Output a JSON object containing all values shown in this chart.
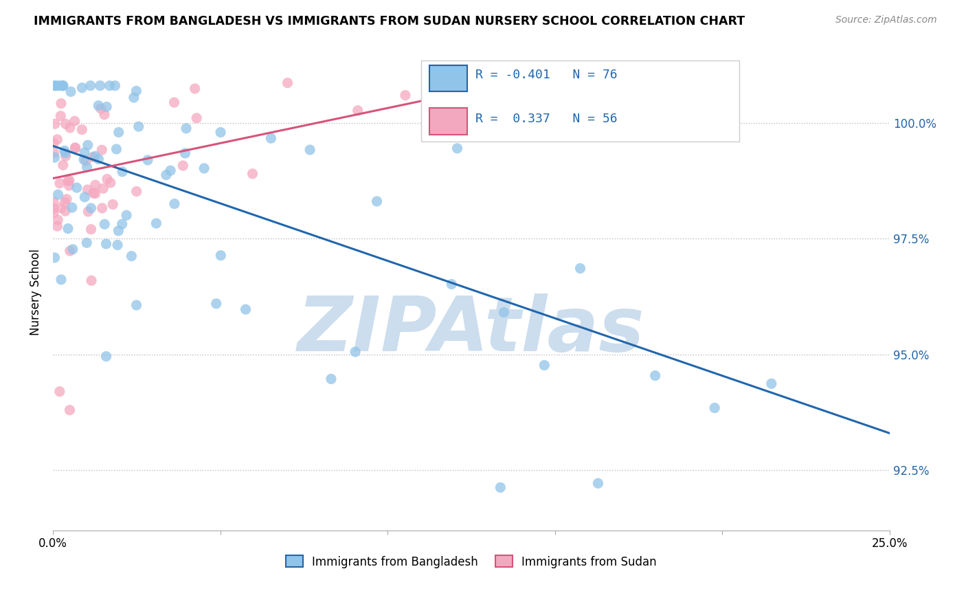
{
  "title": "IMMIGRANTS FROM BANGLADESH VS IMMIGRANTS FROM SUDAN NURSERY SCHOOL CORRELATION CHART",
  "source": "Source: ZipAtlas.com",
  "ylabel": "Nursery School",
  "yticks": [
    92.5,
    95.0,
    97.5,
    100.0
  ],
  "ytick_labels": [
    "92.5%",
    "95.0%",
    "97.5%",
    "100.0%"
  ],
  "xlim": [
    0.0,
    25.0
  ],
  "ylim": [
    91.2,
    101.5
  ],
  "legend_bangladesh": "Immigrants from Bangladesh",
  "legend_sudan": "Immigrants from Sudan",
  "R_bangladesh": -0.401,
  "N_bangladesh": 76,
  "R_sudan": 0.337,
  "N_sudan": 56,
  "color_bangladesh": "#90c4e8",
  "color_sudan": "#f4a8bf",
  "color_bangladesh_line": "#2166ac",
  "color_sudan_line": "#d6537a",
  "watermark": "ZIPAtlas",
  "watermark_color": "#ccdded",
  "bd_line_x": [
    0.0,
    25.0
  ],
  "bd_line_y": [
    99.5,
    93.3
  ],
  "sd_line_x": [
    0.0,
    14.5
  ],
  "sd_line_y": [
    98.8,
    101.0
  ]
}
